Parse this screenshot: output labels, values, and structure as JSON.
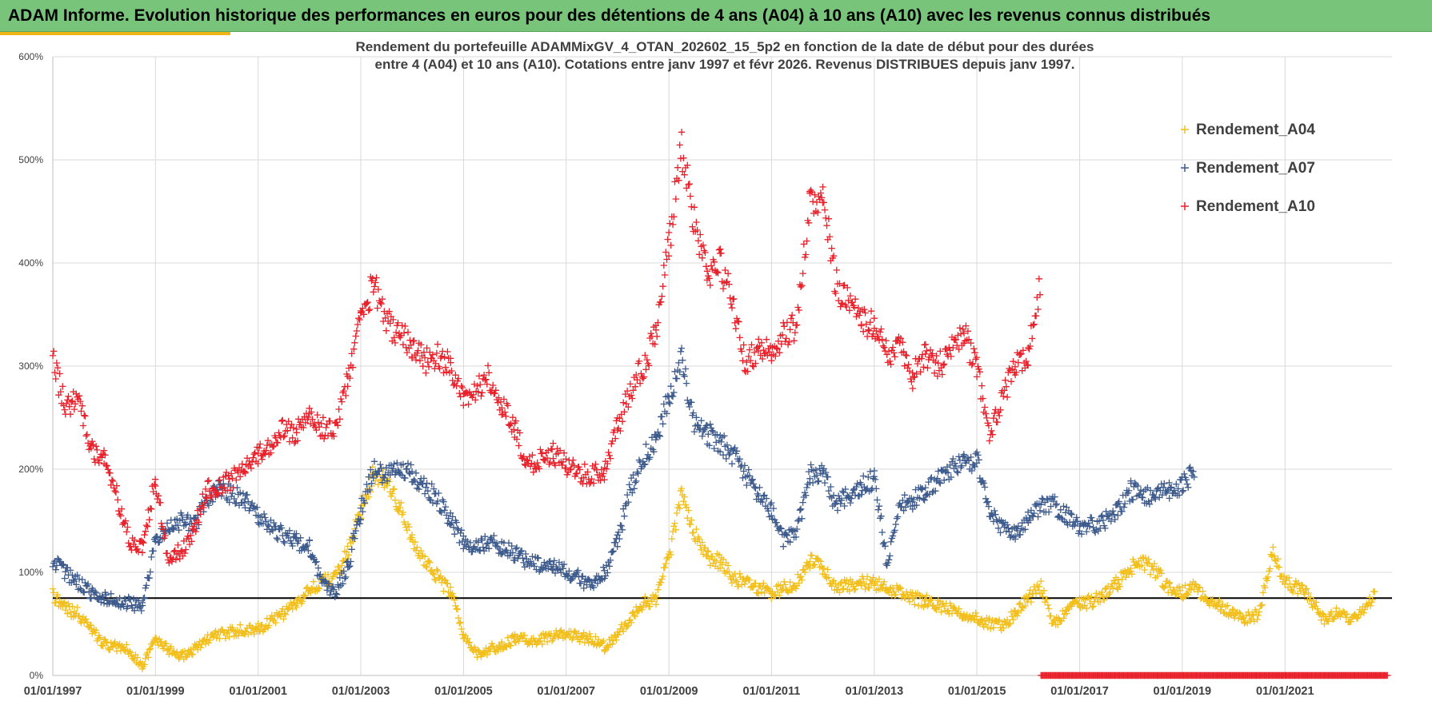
{
  "header": {
    "title": "ADAM Informe. Evolution historique des performances en euros pour des détentions de 4 ans (A04) à 10 ans (A10) avec les revenus connus distribués"
  },
  "chart_data": {
    "type": "scatter",
    "title_lines": [
      "Rendement du portefeuille ADAMMixGV_4_OTAN_202602_15_5p2  en fonction de la date de début pour des durées",
      "entre 4 (A04) et 10 ans (A10). Cotations  entre janv 1997 et févr 2026. Revenus DISTRIBUES depuis janv 1997."
    ],
    "x_range": [
      "1997-01-01",
      "2023-02-01"
    ],
    "ylim": [
      0,
      600
    ],
    "y_ticks": [
      "0%",
      "100%",
      "200%",
      "300%",
      "400%",
      "500%",
      "600%"
    ],
    "x_ticks": [
      "01/01/1997",
      "01/01/1999",
      "01/01/2001",
      "01/01/2003",
      "01/01/2005",
      "01/01/2007",
      "01/01/2009",
      "01/01/2011",
      "01/01/2013",
      "01/01/2015",
      "01/01/2017",
      "01/01/2019",
      "01/01/2021"
    ],
    "grid": true,
    "legend_position": "top-right",
    "reference_line": 75,
    "series": [
      {
        "name": "Rendement_A04",
        "color": "#f2bf1c",
        "points": [
          [
            "1997-01",
            78
          ],
          [
            "1997-04",
            65
          ],
          [
            "1997-07",
            60
          ],
          [
            "1997-10",
            45
          ],
          [
            "1998-01",
            30
          ],
          [
            "1998-04",
            28
          ],
          [
            "1998-07",
            25
          ],
          [
            "1998-10",
            8
          ],
          [
            "1999-01",
            35
          ],
          [
            "1999-04",
            25
          ],
          [
            "1999-07",
            18
          ],
          [
            "1999-10",
            25
          ],
          [
            "2000-01",
            35
          ],
          [
            "2000-04",
            40
          ],
          [
            "2000-07",
            42
          ],
          [
            "2000-10",
            45
          ],
          [
            "2001-01",
            45
          ],
          [
            "2001-04",
            52
          ],
          [
            "2001-07",
            60
          ],
          [
            "2001-10",
            70
          ],
          [
            "2002-01",
            85
          ],
          [
            "2002-04",
            90
          ],
          [
            "2002-07",
            95
          ],
          [
            "2002-10",
            120
          ],
          [
            "2003-01",
            160
          ],
          [
            "2003-04",
            195
          ],
          [
            "2003-07",
            190
          ],
          [
            "2003-10",
            165
          ],
          [
            "2004-01",
            130
          ],
          [
            "2004-04",
            110
          ],
          [
            "2004-07",
            95
          ],
          [
            "2004-10",
            80
          ],
          [
            "2005-01",
            40
          ],
          [
            "2005-04",
            20
          ],
          [
            "2005-07",
            25
          ],
          [
            "2005-10",
            30
          ],
          [
            "2006-01",
            35
          ],
          [
            "2006-04",
            35
          ],
          [
            "2006-07",
            35
          ],
          [
            "2006-10",
            38
          ],
          [
            "2007-01",
            40
          ],
          [
            "2007-04",
            38
          ],
          [
            "2007-07",
            35
          ],
          [
            "2007-10",
            28
          ],
          [
            "2008-01",
            40
          ],
          [
            "2008-04",
            55
          ],
          [
            "2008-07",
            70
          ],
          [
            "2008-10",
            75
          ],
          [
            "2009-01",
            115
          ],
          [
            "2009-04",
            175
          ],
          [
            "2009-07",
            140
          ],
          [
            "2009-10",
            115
          ],
          [
            "2010-01",
            110
          ],
          [
            "2010-04",
            95
          ],
          [
            "2010-07",
            90
          ],
          [
            "2010-10",
            85
          ],
          [
            "2011-01",
            80
          ],
          [
            "2011-04",
            85
          ],
          [
            "2011-07",
            90
          ],
          [
            "2011-10",
            110
          ],
          [
            "2012-01",
            105
          ],
          [
            "2012-04",
            85
          ],
          [
            "2012-07",
            88
          ],
          [
            "2012-10",
            90
          ],
          [
            "2013-01",
            90
          ],
          [
            "2013-04",
            85
          ],
          [
            "2013-07",
            80
          ],
          [
            "2013-10",
            75
          ],
          [
            "2014-01",
            72
          ],
          [
            "2014-04",
            68
          ],
          [
            "2014-07",
            65
          ],
          [
            "2014-10",
            60
          ],
          [
            "2015-01",
            55
          ],
          [
            "2015-04",
            50
          ],
          [
            "2015-07",
            48
          ],
          [
            "2015-10",
            60
          ],
          [
            "2016-01",
            75
          ],
          [
            "2016-04",
            85
          ],
          [
            "2016-07",
            50
          ],
          [
            "2016-10",
            62
          ],
          [
            "2017-01",
            70
          ],
          [
            "2017-04",
            72
          ],
          [
            "2017-07",
            80
          ],
          [
            "2017-10",
            90
          ],
          [
            "2018-01",
            105
          ],
          [
            "2018-04",
            110
          ],
          [
            "2018-07",
            100
          ],
          [
            "2018-10",
            85
          ],
          [
            "2019-01",
            80
          ],
          [
            "2019-04",
            85
          ],
          [
            "2019-07",
            70
          ],
          [
            "2019-10",
            68
          ],
          [
            "2020-01",
            60
          ],
          [
            "2020-04",
            55
          ],
          [
            "2020-07",
            60
          ],
          [
            "2020-10",
            120
          ],
          [
            "2021-01",
            90
          ],
          [
            "2021-04",
            85
          ],
          [
            "2021-07",
            75
          ],
          [
            "2021-10",
            55
          ],
          [
            "2022-01",
            60
          ],
          [
            "2022-04",
            55
          ],
          [
            "2022-07",
            60
          ],
          [
            "2022-10",
            78
          ]
        ]
      },
      {
        "name": "Rendement_A07",
        "color": "#3d5a8c",
        "points": [
          [
            "1997-01",
            112
          ],
          [
            "1997-04",
            100
          ],
          [
            "1997-07",
            90
          ],
          [
            "1997-10",
            80
          ],
          [
            "1998-01",
            75
          ],
          [
            "1998-04",
            72
          ],
          [
            "1998-07",
            70
          ],
          [
            "1998-10",
            65
          ],
          [
            "1999-01",
            130
          ],
          [
            "1999-04",
            145
          ],
          [
            "1999-07",
            150
          ],
          [
            "1999-10",
            145
          ],
          [
            "2000-01",
            170
          ],
          [
            "2000-04",
            180
          ],
          [
            "2000-07",
            175
          ],
          [
            "2000-10",
            170
          ],
          [
            "2001-01",
            155
          ],
          [
            "2001-04",
            145
          ],
          [
            "2001-07",
            135
          ],
          [
            "2001-10",
            130
          ],
          [
            "2002-01",
            125
          ],
          [
            "2002-04",
            90
          ],
          [
            "2002-07",
            80
          ],
          [
            "2002-10",
            105
          ],
          [
            "2003-01",
            160
          ],
          [
            "2003-04",
            200
          ],
          [
            "2003-07",
            195
          ],
          [
            "2003-10",
            200
          ],
          [
            "2004-01",
            195
          ],
          [
            "2004-04",
            185
          ],
          [
            "2004-07",
            170
          ],
          [
            "2004-10",
            150
          ],
          [
            "2005-01",
            130
          ],
          [
            "2005-04",
            125
          ],
          [
            "2005-07",
            130
          ],
          [
            "2005-10",
            125
          ],
          [
            "2006-01",
            118
          ],
          [
            "2006-04",
            110
          ],
          [
            "2006-07",
            108
          ],
          [
            "2006-10",
            105
          ],
          [
            "2007-01",
            100
          ],
          [
            "2007-04",
            95
          ],
          [
            "2007-07",
            85
          ],
          [
            "2007-10",
            100
          ],
          [
            "2008-01",
            130
          ],
          [
            "2008-04",
            180
          ],
          [
            "2008-07",
            210
          ],
          [
            "2008-10",
            230
          ],
          [
            "2009-01",
            270
          ],
          [
            "2009-04",
            305
          ],
          [
            "2009-07",
            240
          ],
          [
            "2009-10",
            235
          ],
          [
            "2010-01",
            225
          ],
          [
            "2010-04",
            215
          ],
          [
            "2010-07",
            195
          ],
          [
            "2010-10",
            175
          ],
          [
            "2011-01",
            160
          ],
          [
            "2011-04",
            130
          ],
          [
            "2011-07",
            140
          ],
          [
            "2011-10",
            195
          ],
          [
            "2012-01",
            195
          ],
          [
            "2012-04",
            165
          ],
          [
            "2012-07",
            175
          ],
          [
            "2012-10",
            185
          ],
          [
            "2013-01",
            190
          ],
          [
            "2013-04",
            110
          ],
          [
            "2013-07",
            165
          ],
          [
            "2013-10",
            170
          ],
          [
            "2014-01",
            180
          ],
          [
            "2014-04",
            190
          ],
          [
            "2014-07",
            200
          ],
          [
            "2014-10",
            205
          ],
          [
            "2015-01",
            210
          ],
          [
            "2015-04",
            155
          ],
          [
            "2015-07",
            145
          ],
          [
            "2015-10",
            140
          ],
          [
            "2016-01",
            150
          ],
          [
            "2016-04",
            165
          ],
          [
            "2016-07",
            165
          ],
          [
            "2016-10",
            155
          ],
          [
            "2017-01",
            145
          ],
          [
            "2017-04",
            145
          ],
          [
            "2017-07",
            150
          ],
          [
            "2017-10",
            160
          ],
          [
            "2018-01",
            180
          ],
          [
            "2018-04",
            175
          ],
          [
            "2018-07",
            175
          ],
          [
            "2018-10",
            180
          ],
          [
            "2019-01",
            185
          ],
          [
            "2019-04",
            200
          ]
        ]
      },
      {
        "name": "Rendement_A10",
        "color": "#e8202a",
        "points": [
          [
            "1997-01",
            305
          ],
          [
            "1997-04",
            260
          ],
          [
            "1997-07",
            270
          ],
          [
            "1997-10",
            220
          ],
          [
            "1998-01",
            210
          ],
          [
            "1998-04",
            175
          ],
          [
            "1998-07",
            130
          ],
          [
            "1998-10",
            125
          ],
          [
            "1999-01",
            190
          ],
          [
            "1999-04",
            115
          ],
          [
            "1999-07",
            120
          ],
          [
            "1999-10",
            140
          ],
          [
            "2000-01",
            180
          ],
          [
            "2000-04",
            185
          ],
          [
            "2000-07",
            190
          ],
          [
            "2000-10",
            205
          ],
          [
            "2001-01",
            215
          ],
          [
            "2001-04",
            225
          ],
          [
            "2001-07",
            240
          ],
          [
            "2001-10",
            235
          ],
          [
            "2002-01",
            255
          ],
          [
            "2002-04",
            240
          ],
          [
            "2002-07",
            235
          ],
          [
            "2002-10",
            290
          ],
          [
            "2003-01",
            345
          ],
          [
            "2003-04",
            380
          ],
          [
            "2003-07",
            340
          ],
          [
            "2003-10",
            335
          ],
          [
            "2004-01",
            320
          ],
          [
            "2004-04",
            305
          ],
          [
            "2004-07",
            310
          ],
          [
            "2004-10",
            300
          ],
          [
            "2005-01",
            270
          ],
          [
            "2005-04",
            275
          ],
          [
            "2005-07",
            290
          ],
          [
            "2005-10",
            260
          ],
          [
            "2006-01",
            240
          ],
          [
            "2006-04",
            205
          ],
          [
            "2006-07",
            210
          ],
          [
            "2006-10",
            215
          ],
          [
            "2007-01",
            205
          ],
          [
            "2007-04",
            195
          ],
          [
            "2007-07",
            195
          ],
          [
            "2007-10",
            195
          ],
          [
            "2008-01",
            240
          ],
          [
            "2008-04",
            275
          ],
          [
            "2008-07",
            300
          ],
          [
            "2008-10",
            330
          ],
          [
            "2009-01",
            420
          ],
          [
            "2009-04",
            510
          ],
          [
            "2009-07",
            440
          ],
          [
            "2009-10",
            390
          ],
          [
            "2010-01",
            400
          ],
          [
            "2010-04",
            360
          ],
          [
            "2010-07",
            300
          ],
          [
            "2010-10",
            320
          ],
          [
            "2011-01",
            315
          ],
          [
            "2011-04",
            330
          ],
          [
            "2011-07",
            340
          ],
          [
            "2011-10",
            460
          ],
          [
            "2012-01",
            470
          ],
          [
            "2012-04",
            380
          ],
          [
            "2012-07",
            360
          ],
          [
            "2012-10",
            345
          ],
          [
            "2013-01",
            340
          ],
          [
            "2013-04",
            310
          ],
          [
            "2013-07",
            320
          ],
          [
            "2013-10",
            290
          ],
          [
            "2014-01",
            310
          ],
          [
            "2014-04",
            300
          ],
          [
            "2014-07",
            315
          ],
          [
            "2014-10",
            330
          ],
          [
            "2015-01",
            300
          ],
          [
            "2015-04",
            230
          ],
          [
            "2015-07",
            270
          ],
          [
            "2015-10",
            300
          ],
          [
            "2016-01",
            310
          ],
          [
            "2016-04",
            385
          ]
        ]
      },
      {
        "name": "",
        "color": "#e8202a",
        "points": [
          [
            "2016-04",
            0
          ],
          [
            "2023-01",
            0
          ]
        ]
      }
    ]
  }
}
